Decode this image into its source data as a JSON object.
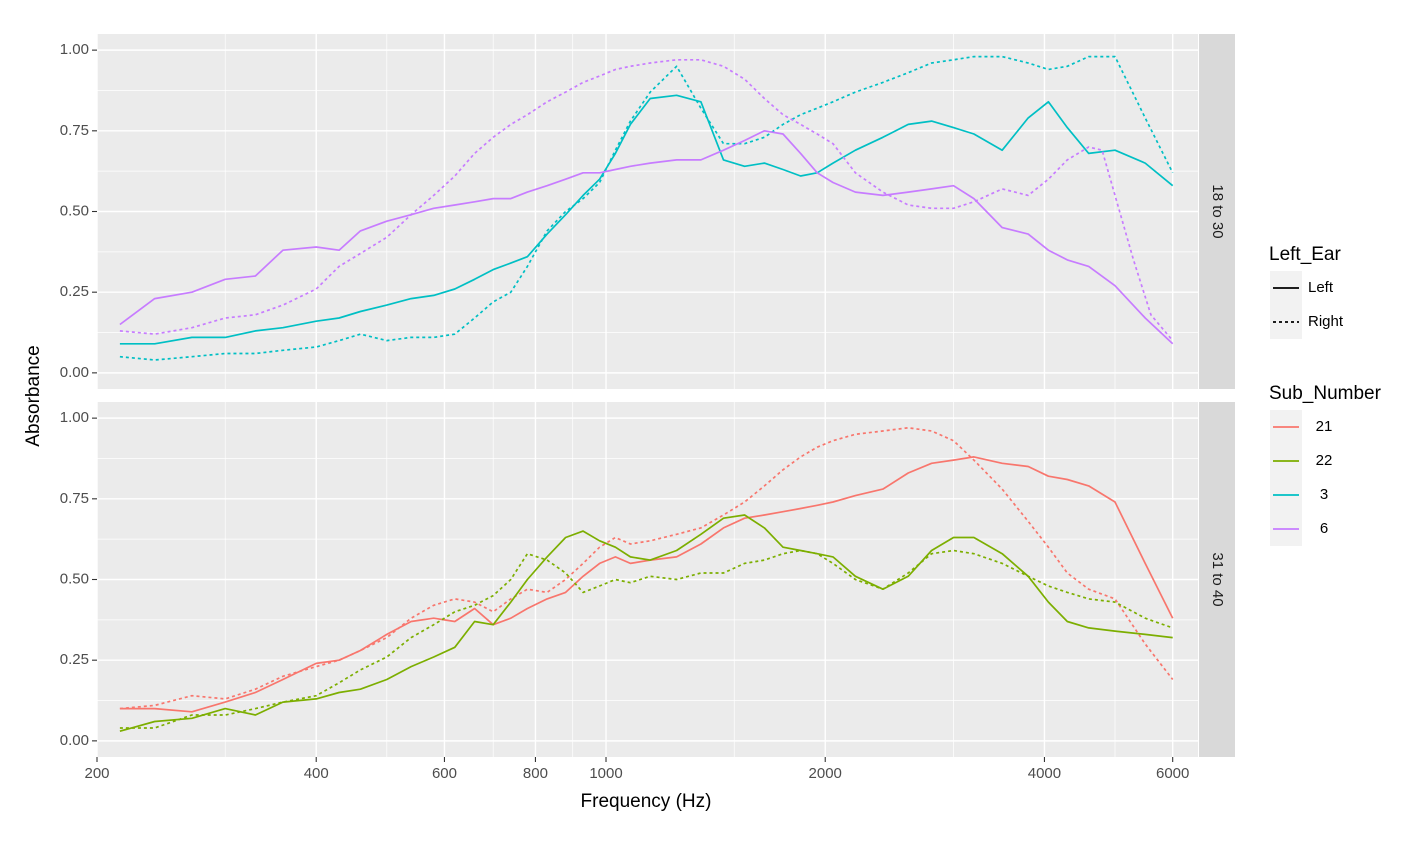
{
  "chart_data": {
    "type": "line",
    "xlabel": "Frequency (Hz)",
    "ylabel": "Absorbance",
    "x_scale": "log",
    "xlim": [
      200,
      6500
    ],
    "ylim": [
      -0.05,
      1.05
    ],
    "x_ticks": [
      200,
      400,
      600,
      800,
      1000,
      2000,
      4000,
      6000
    ],
    "y_ticks": [
      0,
      0.25,
      0.5,
      0.75,
      1
    ],
    "y_tick_labels": [
      "0.00",
      "0.25",
      "0.50",
      "0.75",
      "1.00"
    ],
    "grid": true,
    "legend_position": "right",
    "facets": [
      {
        "label": "18 to 30",
        "series": [
          {
            "subject": "3",
            "ear": "Left",
            "color": "#00BFC4",
            "x": [
              215,
              240,
              270,
              300,
              330,
              360,
              400,
              430,
              460,
              500,
              540,
              580,
              620,
              660,
              700,
              740,
              780,
              830,
              880,
              930,
              980,
              1030,
              1080,
              1150,
              1250,
              1350,
              1450,
              1550,
              1650,
              1750,
              1850,
              1950,
              2050,
              2200,
              2400,
              2600,
              2800,
              3000,
              3200,
              3500,
              3800,
              4050,
              4300,
              4600,
              5000,
              5500,
              6000
            ],
            "y": [
              0.09,
              0.09,
              0.11,
              0.11,
              0.13,
              0.14,
              0.16,
              0.17,
              0.19,
              0.21,
              0.23,
              0.24,
              0.26,
              0.29,
              0.32,
              0.34,
              0.36,
              0.43,
              0.49,
              0.55,
              0.6,
              0.68,
              0.77,
              0.85,
              0.86,
              0.84,
              0.66,
              0.64,
              0.65,
              0.63,
              0.61,
              0.62,
              0.65,
              0.69,
              0.73,
              0.77,
              0.78,
              0.76,
              0.74,
              0.69,
              0.79,
              0.84,
              0.76,
              0.68,
              0.69,
              0.65,
              0.58
            ]
          },
          {
            "subject": "3",
            "ear": "Right",
            "color": "#00BFC4",
            "x": [
              215,
              240,
              270,
              300,
              330,
              360,
              400,
              430,
              460,
              500,
              540,
              580,
              620,
              660,
              700,
              740,
              780,
              830,
              880,
              930,
              980,
              1030,
              1080,
              1150,
              1250,
              1350,
              1450,
              1550,
              1650,
              1750,
              1850,
              1950,
              2050,
              2200,
              2400,
              2600,
              2800,
              3000,
              3200,
              3500,
              3800,
              4050,
              4300,
              4600,
              5000,
              5500,
              6000
            ],
            "y": [
              0.05,
              0.04,
              0.05,
              0.06,
              0.06,
              0.07,
              0.08,
              0.1,
              0.12,
              0.1,
              0.11,
              0.11,
              0.12,
              0.17,
              0.22,
              0.25,
              0.33,
              0.44,
              0.5,
              0.54,
              0.59,
              0.69,
              0.78,
              0.87,
              0.95,
              0.82,
              0.71,
              0.71,
              0.73,
              0.77,
              0.8,
              0.82,
              0.84,
              0.87,
              0.9,
              0.93,
              0.96,
              0.97,
              0.98,
              0.98,
              0.96,
              0.94,
              0.95,
              0.98,
              0.98,
              0.79,
              0.62
            ]
          },
          {
            "subject": "6",
            "ear": "Left",
            "color": "#C77CFF",
            "x": [
              215,
              240,
              270,
              300,
              330,
              360,
              400,
              430,
              460,
              500,
              540,
              580,
              620,
              660,
              700,
              740,
              780,
              830,
              880,
              930,
              980,
              1030,
              1080,
              1150,
              1250,
              1350,
              1450,
              1550,
              1650,
              1750,
              1850,
              1950,
              2050,
              2200,
              2400,
              2600,
              2800,
              3000,
              3200,
              3500,
              3800,
              4050,
              4300,
              4600,
              5000,
              5500,
              6000
            ],
            "y": [
              0.15,
              0.23,
              0.25,
              0.29,
              0.3,
              0.38,
              0.39,
              0.38,
              0.44,
              0.47,
              0.49,
              0.51,
              0.52,
              0.53,
              0.54,
              0.54,
              0.56,
              0.58,
              0.6,
              0.62,
              0.62,
              0.63,
              0.64,
              0.65,
              0.66,
              0.66,
              0.69,
              0.72,
              0.75,
              0.74,
              0.68,
              0.62,
              0.59,
              0.56,
              0.55,
              0.56,
              0.57,
              0.58,
              0.54,
              0.45,
              0.43,
              0.38,
              0.35,
              0.33,
              0.27,
              0.17,
              0.09
            ]
          },
          {
            "subject": "6",
            "ear": "Right",
            "color": "#C77CFF",
            "x": [
              215,
              240,
              270,
              300,
              330,
              360,
              400,
              430,
              460,
              500,
              540,
              580,
              620,
              660,
              700,
              740,
              780,
              830,
              880,
              930,
              980,
              1030,
              1080,
              1150,
              1250,
              1350,
              1450,
              1550,
              1650,
              1750,
              1850,
              1950,
              2050,
              2200,
              2400,
              2600,
              2800,
              3000,
              3200,
              3500,
              3800,
              4050,
              4300,
              4600,
              4800,
              5000,
              5300,
              5600,
              6000
            ],
            "y": [
              0.13,
              0.12,
              0.14,
              0.17,
              0.18,
              0.21,
              0.26,
              0.33,
              0.37,
              0.42,
              0.49,
              0.55,
              0.61,
              0.68,
              0.73,
              0.77,
              0.8,
              0.84,
              0.87,
              0.9,
              0.92,
              0.94,
              0.95,
              0.96,
              0.97,
              0.97,
              0.95,
              0.91,
              0.85,
              0.8,
              0.77,
              0.74,
              0.71,
              0.62,
              0.56,
              0.52,
              0.51,
              0.51,
              0.53,
              0.57,
              0.55,
              0.6,
              0.66,
              0.7,
              0.69,
              0.55,
              0.35,
              0.18,
              0.1
            ]
          }
        ]
      },
      {
        "label": "31 to 40",
        "series": [
          {
            "subject": "21",
            "ear": "Left",
            "color": "#F8766D",
            "x": [
              215,
              240,
              270,
              300,
              330,
              360,
              400,
              430,
              460,
              500,
              540,
              580,
              620,
              660,
              700,
              740,
              780,
              830,
              880,
              930,
              980,
              1030,
              1080,
              1150,
              1250,
              1350,
              1450,
              1550,
              1650,
              1750,
              1850,
              1950,
              2050,
              2200,
              2400,
              2600,
              2800,
              3000,
              3200,
              3500,
              3800,
              4050,
              4300,
              4600,
              5000,
              5500,
              6000
            ],
            "y": [
              0.1,
              0.1,
              0.09,
              0.12,
              0.15,
              0.19,
              0.24,
              0.25,
              0.28,
              0.33,
              0.37,
              0.38,
              0.37,
              0.41,
              0.36,
              0.38,
              0.41,
              0.44,
              0.46,
              0.51,
              0.55,
              0.57,
              0.55,
              0.56,
              0.57,
              0.61,
              0.66,
              0.69,
              0.7,
              0.71,
              0.72,
              0.73,
              0.74,
              0.76,
              0.78,
              0.83,
              0.86,
              0.87,
              0.88,
              0.86,
              0.85,
              0.82,
              0.81,
              0.79,
              0.74,
              0.55,
              0.38
            ]
          },
          {
            "subject": "21",
            "ear": "Right",
            "color": "#F8766D",
            "x": [
              215,
              240,
              270,
              300,
              330,
              360,
              400,
              430,
              460,
              500,
              540,
              580,
              620,
              660,
              700,
              740,
              780,
              830,
              880,
              930,
              980,
              1030,
              1080,
              1150,
              1250,
              1350,
              1450,
              1550,
              1650,
              1750,
              1850,
              1950,
              2050,
              2200,
              2400,
              2600,
              2800,
              3000,
              3200,
              3500,
              3800,
              4050,
              4300,
              4600,
              5000,
              5500,
              6000
            ],
            "y": [
              0.1,
              0.11,
              0.14,
              0.13,
              0.16,
              0.2,
              0.23,
              0.25,
              0.28,
              0.32,
              0.38,
              0.42,
              0.44,
              0.43,
              0.4,
              0.44,
              0.47,
              0.46,
              0.5,
              0.55,
              0.6,
              0.63,
              0.61,
              0.62,
              0.64,
              0.66,
              0.7,
              0.74,
              0.79,
              0.84,
              0.88,
              0.91,
              0.93,
              0.95,
              0.96,
              0.97,
              0.96,
              0.93,
              0.87,
              0.78,
              0.68,
              0.6,
              0.52,
              0.47,
              0.44,
              0.3,
              0.19
            ]
          },
          {
            "subject": "22",
            "ear": "Left",
            "color": "#7CAE00",
            "x": [
              215,
              240,
              270,
              300,
              330,
              360,
              400,
              430,
              460,
              500,
              540,
              580,
              620,
              660,
              700,
              740,
              780,
              830,
              880,
              930,
              980,
              1030,
              1080,
              1150,
              1250,
              1350,
              1450,
              1550,
              1650,
              1750,
              1850,
              1950,
              2050,
              2200,
              2400,
              2600,
              2800,
              3000,
              3200,
              3500,
              3800,
              4050,
              4300,
              4600,
              5000,
              5500,
              6000
            ],
            "y": [
              0.03,
              0.06,
              0.07,
              0.1,
              0.08,
              0.12,
              0.13,
              0.15,
              0.16,
              0.19,
              0.23,
              0.26,
              0.29,
              0.37,
              0.36,
              0.43,
              0.5,
              0.57,
              0.63,
              0.65,
              0.62,
              0.6,
              0.57,
              0.56,
              0.59,
              0.64,
              0.69,
              0.7,
              0.66,
              0.6,
              0.59,
              0.58,
              0.57,
              0.51,
              0.47,
              0.51,
              0.59,
              0.63,
              0.63,
              0.58,
              0.51,
              0.43,
              0.37,
              0.35,
              0.34,
              0.33,
              0.32
            ]
          },
          {
            "subject": "22",
            "ear": "Right",
            "color": "#7CAE00",
            "x": [
              215,
              240,
              270,
              300,
              330,
              360,
              400,
              430,
              460,
              500,
              540,
              580,
              620,
              660,
              700,
              740,
              780,
              830,
              880,
              930,
              980,
              1030,
              1080,
              1150,
              1250,
              1350,
              1450,
              1550,
              1650,
              1750,
              1850,
              1950,
              2050,
              2200,
              2400,
              2600,
              2800,
              3000,
              3200,
              3500,
              3800,
              4050,
              4300,
              4600,
              5000,
              5500,
              6000
            ],
            "y": [
              0.04,
              0.04,
              0.08,
              0.08,
              0.1,
              0.12,
              0.14,
              0.18,
              0.22,
              0.26,
              0.32,
              0.36,
              0.4,
              0.42,
              0.45,
              0.5,
              0.58,
              0.56,
              0.52,
              0.46,
              0.48,
              0.5,
              0.49,
              0.51,
              0.5,
              0.52,
              0.52,
              0.55,
              0.56,
              0.58,
              0.59,
              0.58,
              0.55,
              0.5,
              0.47,
              0.52,
              0.58,
              0.59,
              0.58,
              0.55,
              0.51,
              0.48,
              0.46,
              0.44,
              0.43,
              0.38,
              0.35
            ]
          }
        ]
      }
    ],
    "legend": {
      "linetype_title": "Left_Ear",
      "linetype_items": [
        "Left",
        "Right"
      ],
      "color_title": "Sub_Number",
      "color_items": [
        {
          "label": "21",
          "color": "#F8766D"
        },
        {
          "label": "22",
          "color": "#7CAE00"
        },
        {
          "label": "3",
          "color": "#00BFC4"
        },
        {
          "label": "6",
          "color": "#C77CFF"
        }
      ]
    },
    "colors": {
      "panel_bg": "#EBEBEB",
      "grid": "#FFFFFF",
      "strip_bg": "#D9D9D9",
      "tick_text": "#4D4D4D",
      "key_bg": "#F2F2F2"
    }
  }
}
